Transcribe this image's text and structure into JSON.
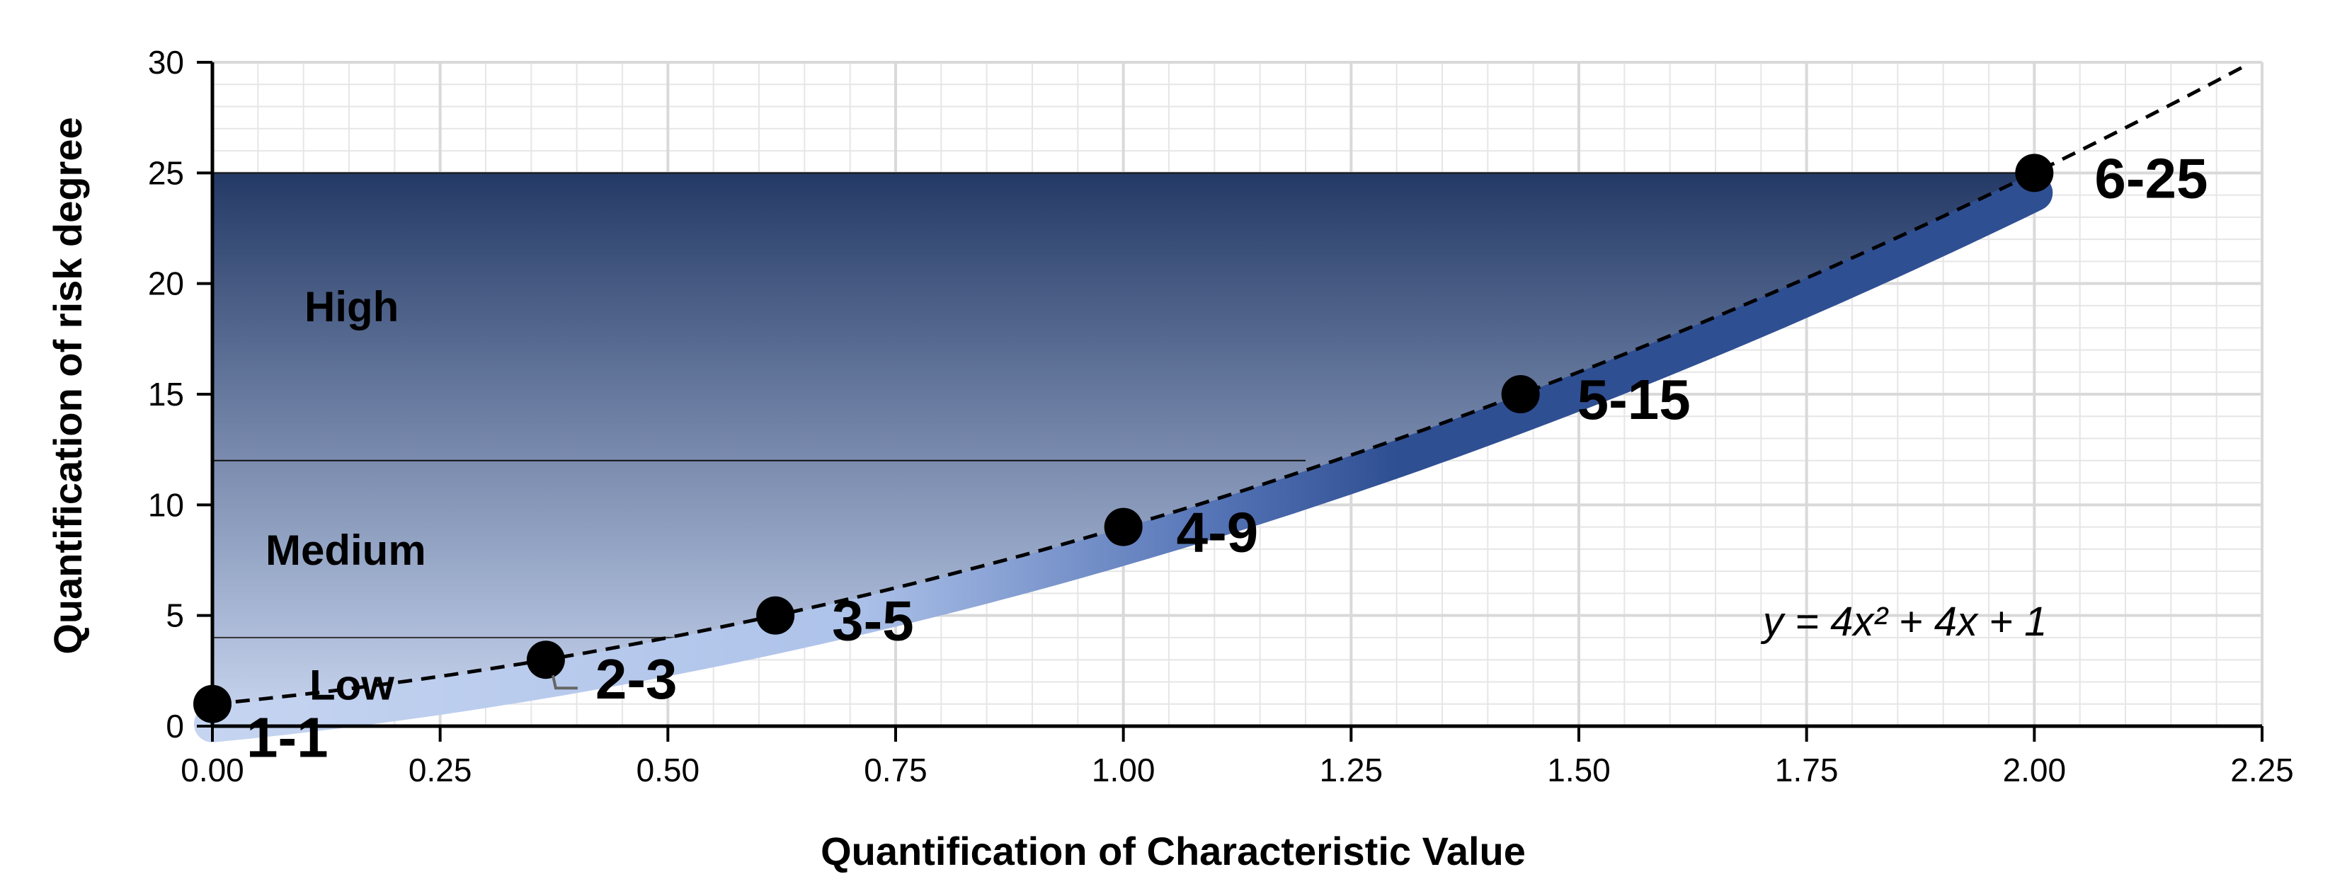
{
  "chart_data": {
    "type": "scatter",
    "xlabel": "Quantification of Characteristic Value",
    "ylabel": "Quantification of risk degree",
    "xlim": [
      0,
      2.25
    ],
    "ylim": [
      0,
      30
    ],
    "x_ticks": [
      "0.00",
      "0.25",
      "0.50",
      "0.75",
      "1.00",
      "1.25",
      "1.50",
      "1.75",
      "2.00",
      "2.25"
    ],
    "y_ticks": [
      "0",
      "5",
      "10",
      "15",
      "20",
      "25",
      "30"
    ],
    "grid": true,
    "points": [
      {
        "x": 0.0,
        "y": 1,
        "label": "1-1"
      },
      {
        "x": 0.366,
        "y": 3,
        "label": "2-3"
      },
      {
        "x": 0.618,
        "y": 5,
        "label": "3-5"
      },
      {
        "x": 1.0,
        "y": 9,
        "label": "4-9"
      },
      {
        "x": 1.436,
        "y": 15,
        "label": "5-15"
      },
      {
        "x": 2.0,
        "y": 25,
        "label": "6-25"
      }
    ],
    "fit_curve": {
      "equation": "y = 4x² + 4x + 1",
      "coefficients": [
        4,
        4,
        1
      ]
    },
    "zones": [
      {
        "label": "Low",
        "y_from": 0,
        "y_to": 4
      },
      {
        "label": "Medium",
        "y_from": 4,
        "y_to": 12
      },
      {
        "label": "High",
        "y_from": 12,
        "y_to": 25
      }
    ],
    "colors": {
      "zone_top": "#243a66",
      "zone_bottom": "#cbd8f2",
      "band_dark": "#2f4f93",
      "band_light": "#c5d4f0",
      "grid": "#d9d9d9"
    }
  }
}
